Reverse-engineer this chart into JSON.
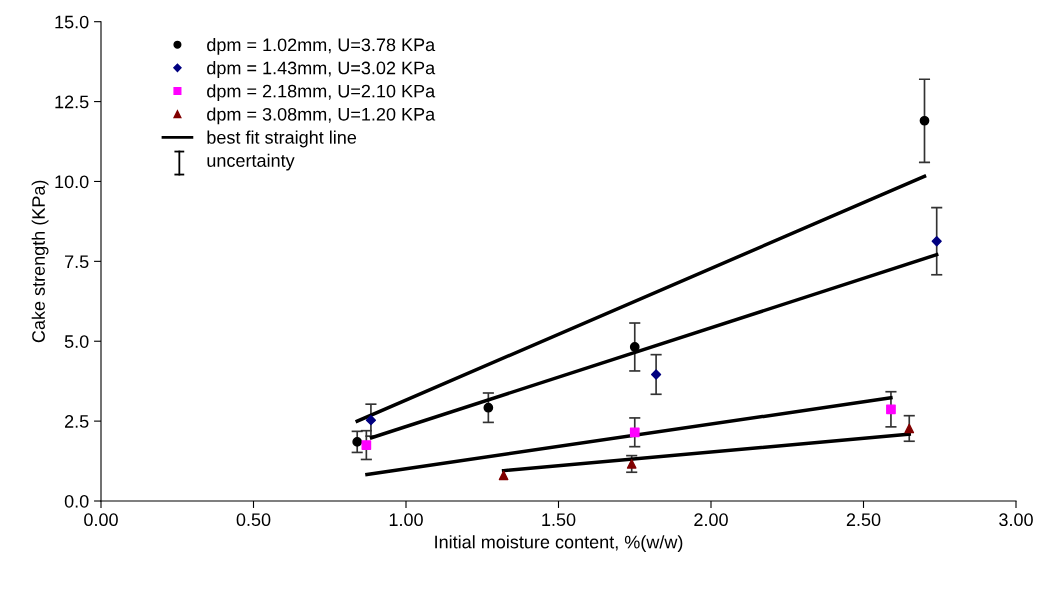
{
  "chart_data": {
    "type": "scatter",
    "xlabel": "Initial moisture content, %(w/w)",
    "ylabel": "Cake strength (KPa)",
    "xlim": [
      0,
      3
    ],
    "ylim": [
      0,
      15
    ],
    "xticks": [
      {
        "value": 0,
        "label": "0.00"
      },
      {
        "value": 0.5,
        "label": "0.50"
      },
      {
        "value": 1,
        "label": "1.00"
      },
      {
        "value": 1.5,
        "label": "1.50"
      },
      {
        "value": 2,
        "label": "2.00"
      },
      {
        "value": 2.5,
        "label": "2.50"
      },
      {
        "value": 3,
        "label": "3.00"
      }
    ],
    "yticks": [
      {
        "value": 0,
        "label": "0.0"
      },
      {
        "value": 2.5,
        "label": "2.5"
      },
      {
        "value": 5,
        "label": "5.0"
      },
      {
        "value": 7.5,
        "label": "7.5"
      },
      {
        "value": 10,
        "label": "10.0"
      },
      {
        "value": 12.5,
        "label": "12.5"
      },
      {
        "value": 15,
        "label": "15.0"
      }
    ],
    "grid": false,
    "legend": "top left",
    "annotations": [
      "uncertainty"
    ],
    "series": [
      {
        "name": "dpm = 1.02mm, U=3.78 KPa",
        "marker": "circle",
        "color": "#000000",
        "x": [
          0.84,
          1.27,
          1.75,
          2.7
        ],
        "values": [
          1.85,
          2.92,
          4.82,
          11.9
        ],
        "errors": [
          0.33,
          0.46,
          0.75,
          1.3
        ]
      },
      {
        "name": "dpm = 1.43mm, U=3.02 KPa",
        "marker": "diamond",
        "color": "#000080",
        "x": [
          0.885,
          1.82,
          2.74
        ],
        "values": [
          2.53,
          3.96,
          8.13
        ],
        "errors": [
          0.5,
          0.62,
          1.05
        ]
      },
      {
        "name": "dpm = 2.18mm, U=2.10 KPa",
        "marker": "square",
        "color": "#ff00ff",
        "x": [
          0.87,
          1.75,
          2.59
        ],
        "values": [
          1.75,
          2.15,
          2.87
        ],
        "errors": [
          0.45,
          0.45,
          0.55
        ]
      },
      {
        "name": "dpm = 3.08mm, U=1.20 KPa",
        "marker": "triangle",
        "color": "#800000",
        "x": [
          1.32,
          1.74,
          2.65
        ],
        "values": [
          0.8,
          1.16,
          2.27
        ],
        "errors": [
          null,
          0.26,
          0.4
        ]
      },
      {
        "name": "best fit straight line",
        "type": "line",
        "color": "#000000",
        "x": [
          0.84,
          2.7
        ],
        "values": [
          2.5,
          10.16
        ]
      },
      {
        "type": "line",
        "color": "#000000",
        "x": [
          0.887,
          2.74
        ],
        "values": [
          1.98,
          7.71
        ]
      },
      {
        "type": "line",
        "color": "#000000",
        "x": [
          0.872,
          2.59
        ],
        "values": [
          0.83,
          3.23
        ]
      },
      {
        "type": "line",
        "color": "#000000",
        "x": [
          1.32,
          2.65
        ],
        "values": [
          0.95,
          2.09
        ]
      }
    ]
  }
}
